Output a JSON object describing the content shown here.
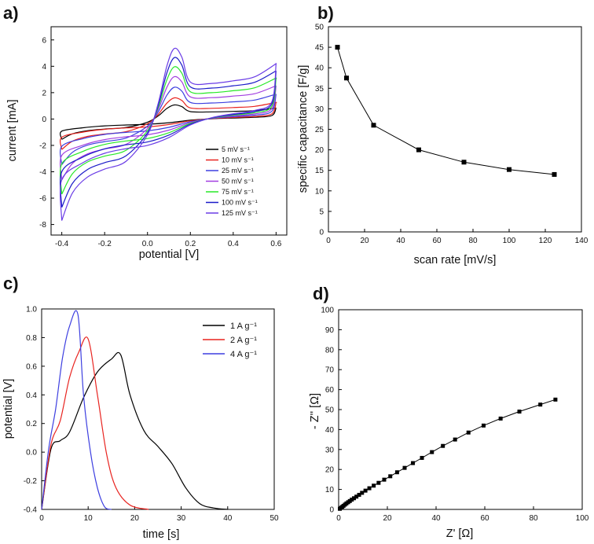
{
  "colors": {
    "black": "#000000",
    "red": "#e8231f",
    "blue": "#3d3fe0",
    "purple": "#a23ee0",
    "green": "#27e827",
    "darkblue": "#1a1ac8",
    "violet": "#6a3ce6"
  },
  "chart_data": [
    {
      "panel": "a)",
      "type": "line",
      "xlabel": "potential [V]",
      "ylabel": "current [mA]",
      "xlim": [
        -0.45,
        0.65
      ],
      "ylim": [
        -8.8,
        7.0
      ],
      "xticks": [
        "-0.4",
        "-0.2",
        "0.0",
        "0.2",
        "0.4",
        "0.6"
      ],
      "yticks": [
        "6",
        "4",
        "2",
        "0",
        "-2",
        "-4",
        "-6",
        "-8"
      ],
      "legend_position": "bottom-right",
      "series": [
        {
          "name": "5 mV s⁻¹",
          "color": "#000000",
          "scale": 0.2
        },
        {
          "name": "10 mV s⁻¹",
          "color": "#e8231f",
          "scale": 0.3
        },
        {
          "name": "25 mV s⁻¹",
          "color": "#3d3fe0",
          "scale": 0.45
        },
        {
          "name": "50 mV s⁻¹",
          "color": "#a23ee0",
          "scale": 0.6
        },
        {
          "name": "75 mV s⁻¹",
          "color": "#27e827",
          "scale": 0.74
        },
        {
          "name": "100 mV s⁻¹",
          "color": "#1a1ac8",
          "scale": 0.87
        },
        {
          "name": "125 mV s⁻¹",
          "color": "#6a3ce6",
          "scale": 1.0
        }
      ],
      "cv_shape_125": {
        "forward": [
          [
            -0.4,
            -7.7
          ],
          [
            -0.35,
            -5.6
          ],
          [
            -0.28,
            -4.4
          ],
          [
            -0.2,
            -3.8
          ],
          [
            -0.1,
            -3.2
          ],
          [
            0.0,
            -1.2
          ],
          [
            0.05,
            1.2
          ],
          [
            0.09,
            4.0
          ],
          [
            0.125,
            5.35
          ],
          [
            0.16,
            4.7
          ],
          [
            0.2,
            2.8
          ],
          [
            0.3,
            2.7
          ],
          [
            0.4,
            2.9
          ],
          [
            0.5,
            3.2
          ],
          [
            0.6,
            4.2
          ]
        ],
        "backward": [
          [
            0.6,
            4.2
          ],
          [
            0.58,
            1.3
          ],
          [
            0.5,
            0.65
          ],
          [
            0.4,
            0.4
          ],
          [
            0.3,
            0.1
          ],
          [
            0.2,
            -0.45
          ],
          [
            0.1,
            -1.4
          ],
          [
            0.0,
            -2.0
          ],
          [
            -0.1,
            -2.25
          ],
          [
            -0.2,
            -2.6
          ],
          [
            -0.3,
            -3.3
          ],
          [
            -0.4,
            -4.6
          ],
          [
            -0.4,
            -7.7
          ]
        ]
      }
    },
    {
      "panel": "b)",
      "type": "line",
      "xlabel": "scan rate [mV/s]",
      "ylabel": "specific capacitance [F/g]",
      "xlim": [
        0,
        140
      ],
      "ylim": [
        0,
        50
      ],
      "xticks": [
        "0",
        "20",
        "40",
        "60",
        "80",
        "100",
        "120",
        "140"
      ],
      "yticks": [
        "50",
        "45",
        "40",
        "35",
        "30",
        "25",
        "20",
        "15",
        "10",
        "5",
        "0"
      ],
      "x": [
        5,
        10,
        25,
        50,
        75,
        100,
        125
      ],
      "y": [
        45,
        37.5,
        26,
        20,
        17,
        15.2,
        14
      ]
    },
    {
      "panel": "c)",
      "type": "line",
      "xlabel": "time [s]",
      "ylabel": "potential [V]",
      "xlim": [
        0,
        50
      ],
      "ylim": [
        -0.4,
        1.0
      ],
      "xticks": [
        "0",
        "10",
        "20",
        "30",
        "40",
        "50"
      ],
      "yticks": [
        "1.0",
        "0.8",
        "0.6",
        "0.4",
        "0.2",
        "0.0",
        "-0.2",
        "-0.4"
      ],
      "legend_position": "top-right",
      "series": [
        {
          "name": "1 A g⁻¹",
          "color": "#000000",
          "x": [
            0,
            2,
            4,
            6,
            9,
            12,
            15,
            17,
            19,
            22,
            25,
            28,
            31,
            34,
            37,
            40
          ],
          "y": [
            -0.4,
            0.02,
            0.08,
            0.14,
            0.38,
            0.56,
            0.65,
            0.68,
            0.4,
            0.15,
            0.04,
            -0.08,
            -0.25,
            -0.36,
            -0.39,
            -0.4
          ]
        },
        {
          "name": "2 A g⁻¹",
          "color": "#e8231f",
          "x": [
            0,
            2,
            4,
            6,
            8,
            10,
            12,
            14,
            16,
            19,
            23
          ],
          "y": [
            -0.4,
            0.05,
            0.22,
            0.52,
            0.7,
            0.79,
            0.4,
            -0.02,
            -0.25,
            -0.37,
            -0.4
          ]
        },
        {
          "name": "4 A g⁻¹",
          "color": "#3d3fe0",
          "x": [
            0,
            1.5,
            3,
            4.5,
            6,
            7.8,
            9,
            10.5,
            12,
            13.5,
            15
          ],
          "y": [
            -0.4,
            0.02,
            0.3,
            0.66,
            0.88,
            0.96,
            0.4,
            0.0,
            -0.25,
            -0.38,
            -0.4
          ]
        }
      ]
    },
    {
      "panel": "d)",
      "type": "scatter",
      "xlabel": "Z' [Ω]",
      "ylabel": "- Z'' [Ω]",
      "xlim": [
        0,
        100
      ],
      "ylim": [
        0,
        100
      ],
      "xticks": [
        "0",
        "20",
        "40",
        "60",
        "80",
        "100"
      ],
      "yticks": [
        "100",
        "90",
        "80",
        "70",
        "60",
        "50",
        "40",
        "30",
        "20",
        "10",
        "0"
      ],
      "x": [
        0.5,
        1,
        1.5,
        2,
        2.6,
        3.2,
        3.9,
        4.6,
        5.4,
        6.3,
        7.3,
        8.4,
        9.6,
        11,
        12.6,
        14.4,
        16.4,
        18.7,
        21.2,
        24,
        27.1,
        30.5,
        34.2,
        38.3,
        42.8,
        47.8,
        53.3,
        59.5,
        66.5,
        74.2,
        82.8,
        89
      ],
      "y": [
        0.3,
        0.8,
        1.3,
        1.8,
        2.4,
        3.0,
        3.6,
        4.2,
        4.9,
        5.6,
        6.4,
        7.3,
        8.3,
        9.4,
        10.6,
        11.9,
        13.3,
        14.9,
        16.6,
        18.6,
        20.8,
        23.2,
        25.8,
        28.7,
        31.8,
        35.0,
        38.5,
        42.0,
        45.5,
        49.0,
        52.5,
        55.0
      ]
    }
  ]
}
